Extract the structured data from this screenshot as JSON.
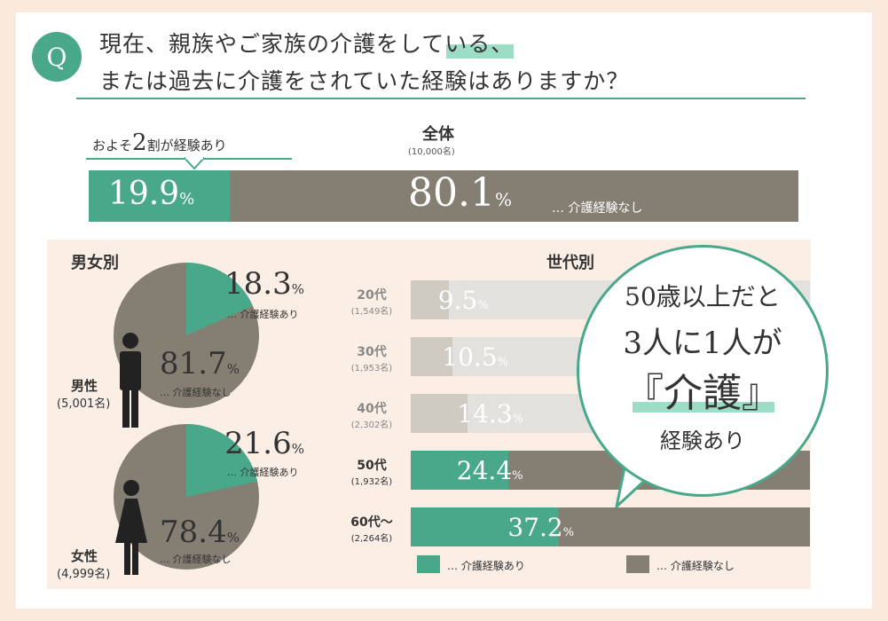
{
  "question": {
    "badge": "Q",
    "line1": "現在、親族やご家族の介護をしている、",
    "line2": "または過去に介護をされていた経験はありますか？"
  },
  "callout": {
    "pre": "およそ",
    "num": "2",
    "post": "割が経験あり"
  },
  "overall": {
    "title": "全体",
    "n": "(10,000名)",
    "yes": "19.9",
    "no": "80.1",
    "no_note": "… 介護経験なし"
  },
  "gender": {
    "title": "男女別",
    "groups": [
      {
        "label": "男性",
        "n": "(5,001名)",
        "yes": "18.3",
        "no": "81.7",
        "yes_note": "… 介護経験あり",
        "no_note": "… 介護経験なし"
      },
      {
        "label": "女性",
        "n": "(4,999名)",
        "yes": "21.6",
        "no": "78.4",
        "yes_note": "… 介護経験あり",
        "no_note": "… 介護経験なし"
      }
    ]
  },
  "age": {
    "title": "世代別",
    "groups": [
      {
        "label": "20代",
        "n": "(1,549名)",
        "value": "9.5"
      },
      {
        "label": "30代",
        "n": "(1,953名)",
        "value": "10.5"
      },
      {
        "label": "40代",
        "n": "(2,302名)",
        "value": "14.3"
      },
      {
        "label": "50代",
        "n": "(1,932名)",
        "value": "24.4"
      },
      {
        "label": "60代～",
        "n": "(2,264名)",
        "value": "37.2"
      }
    ]
  },
  "legend": {
    "yes": "… 介護経験あり",
    "no": "… 介護経験なし"
  },
  "bubble": {
    "line1": "50歳以上だと",
    "line2": "3人に1人が",
    "line3": "『介護』",
    "line4": "経験あり"
  },
  "pct_sign": "%",
  "colors": {
    "yes": "#4aa88a",
    "no": "#857f73",
    "muted_yes": "#cfcac2",
    "muted_no": "#e3e1de",
    "highlight": "#9ddcc5"
  },
  "chart_data": [
    {
      "type": "bar",
      "title": "全体",
      "categories": [
        "全体"
      ],
      "series": [
        {
          "name": "介護経験あり",
          "values": [
            19.9
          ]
        },
        {
          "name": "介護経験なし",
          "values": [
            80.1
          ]
        }
      ],
      "ylim": [
        0,
        100
      ]
    },
    {
      "type": "pie",
      "title": "男性",
      "labels": [
        "介護経験あり",
        "介護経験なし"
      ],
      "values": [
        18.3,
        81.7
      ]
    },
    {
      "type": "pie",
      "title": "女性",
      "labels": [
        "介護経験あり",
        "介護経験なし"
      ],
      "values": [
        21.6,
        78.4
      ]
    },
    {
      "type": "bar",
      "title": "世代別",
      "categories": [
        "20代",
        "30代",
        "40代",
        "50代",
        "60代～"
      ],
      "series": [
        {
          "name": "介護経験あり",
          "values": [
            9.5,
            10.5,
            14.3,
            24.4,
            37.2
          ]
        },
        {
          "name": "介護経験なし",
          "values": [
            90.5,
            89.5,
            85.7,
            75.6,
            62.8
          ]
        }
      ],
      "ylim": [
        0,
        100
      ]
    }
  ]
}
